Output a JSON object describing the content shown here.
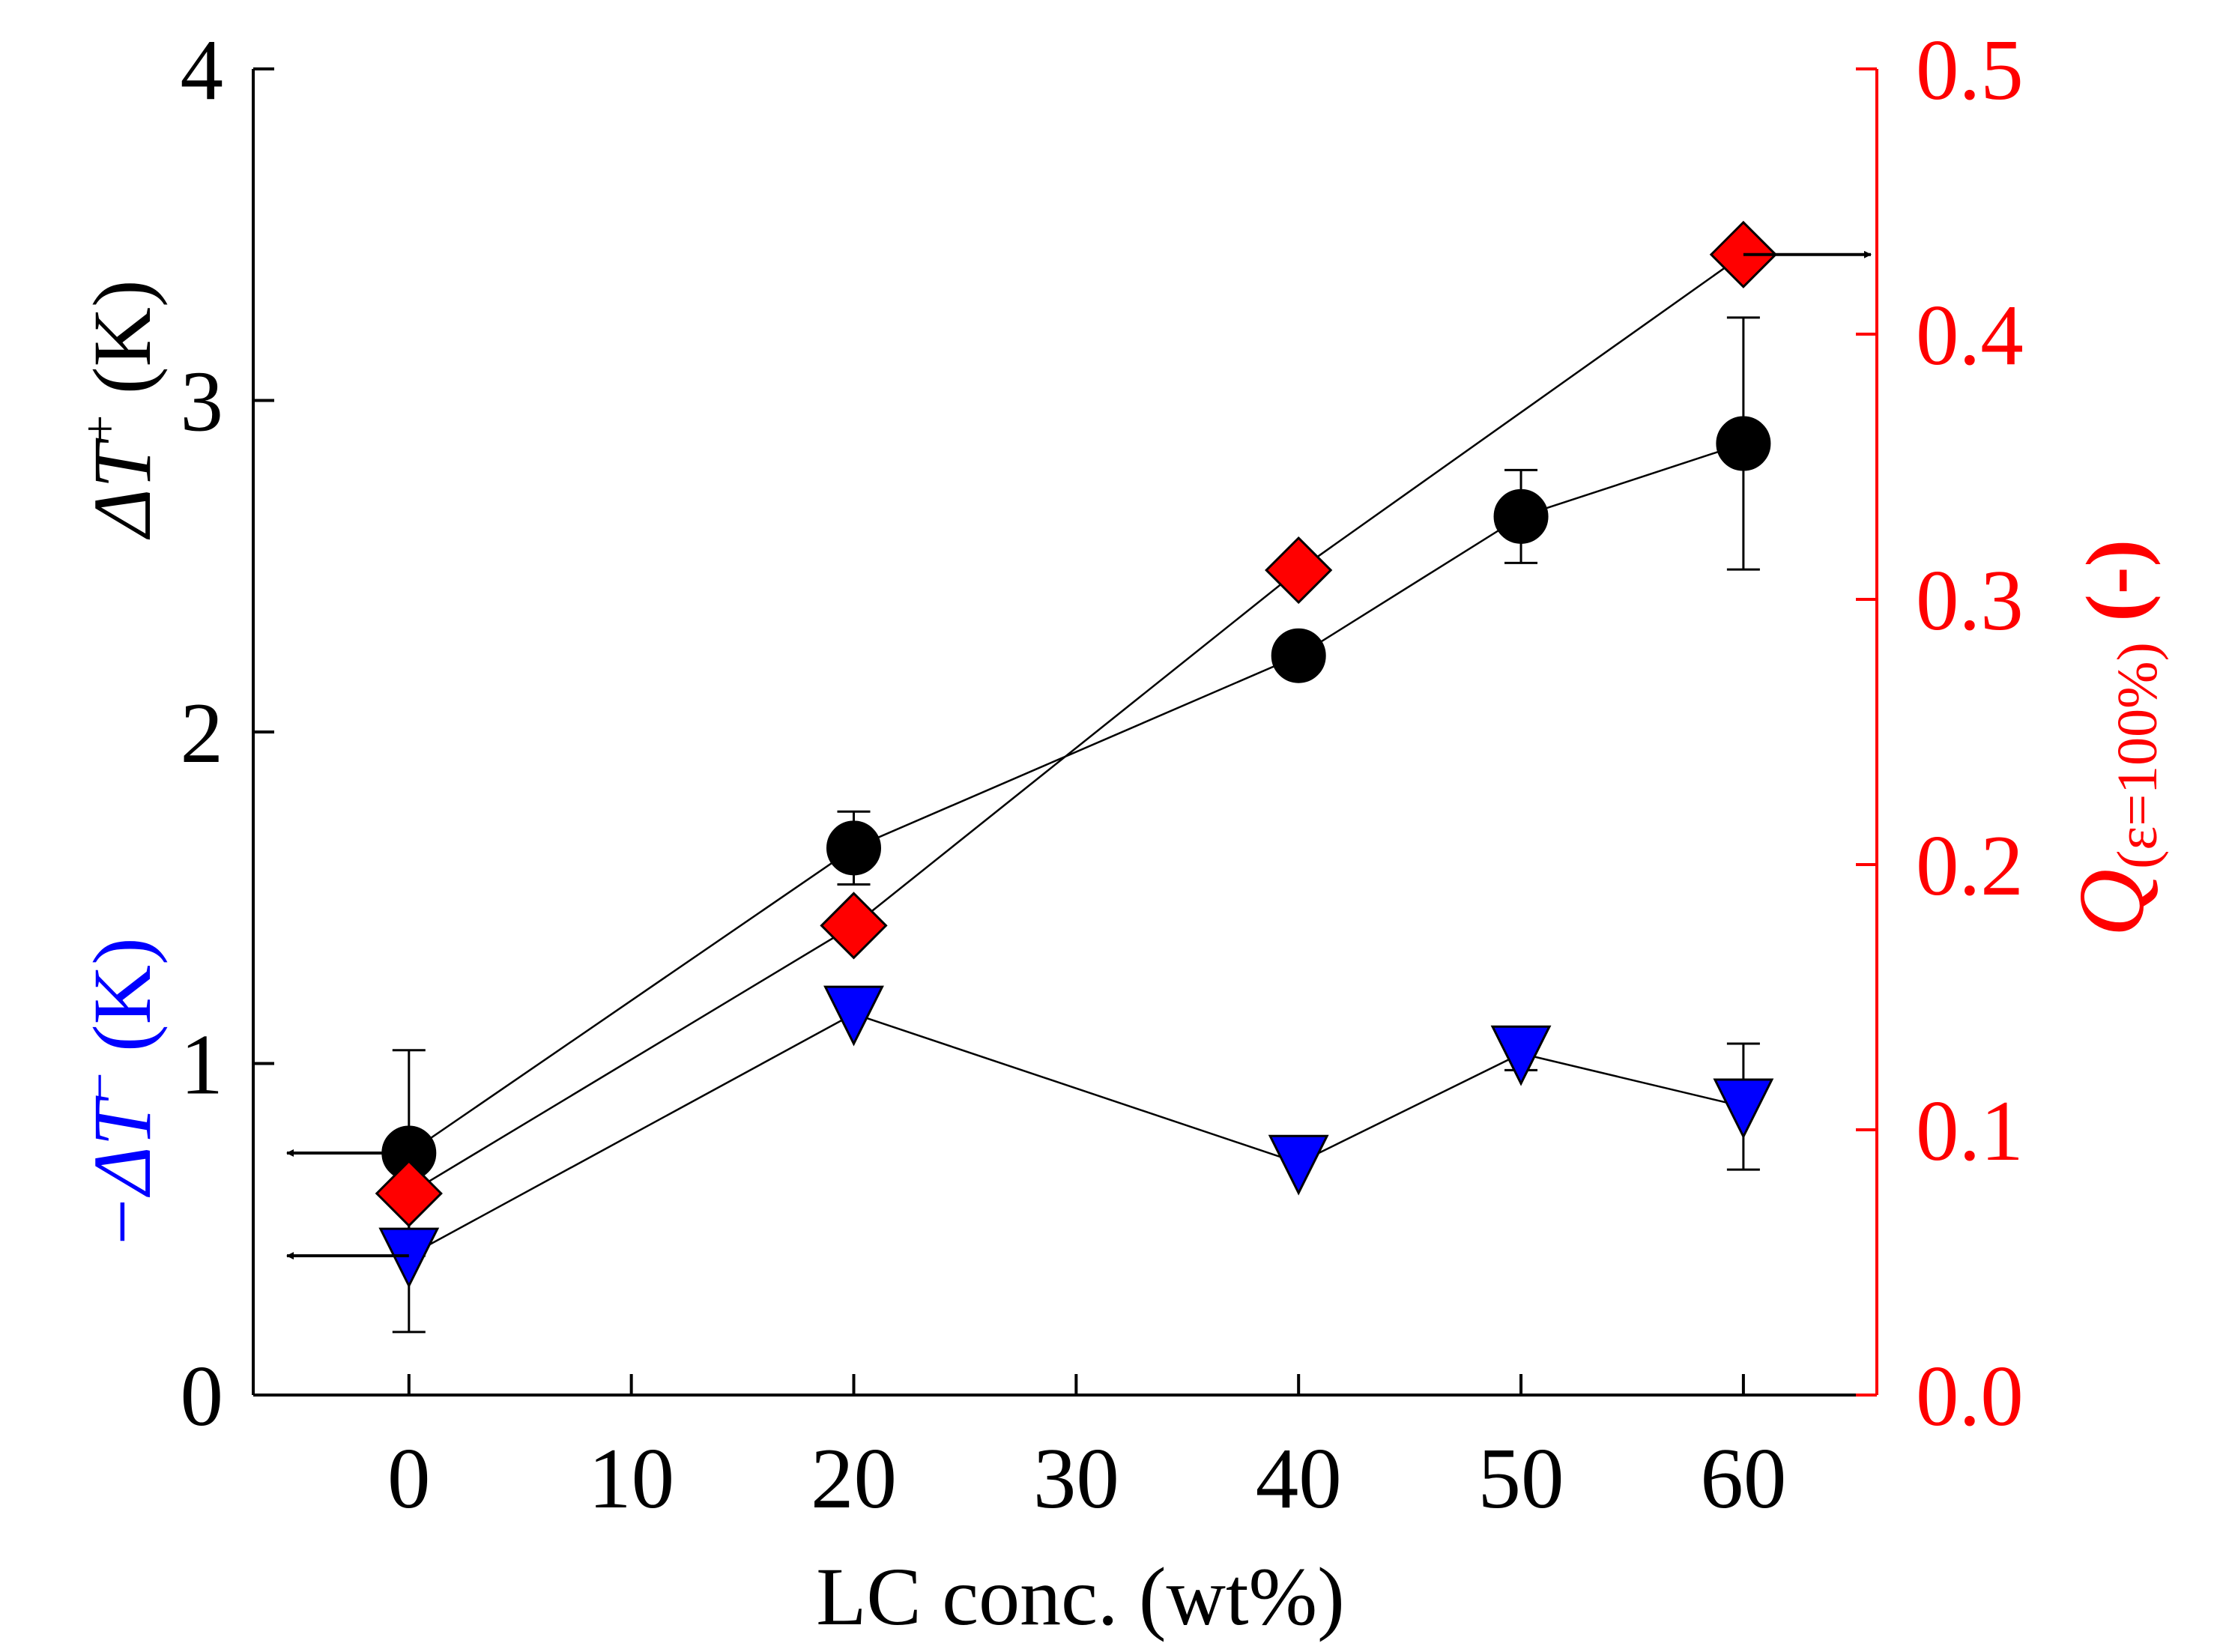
{
  "chart_data": {
    "type": "scatter",
    "x_axis": {
      "label": "LC conc. (wt%)",
      "range": [
        -7,
        66
      ],
      "ticks": [
        0,
        10,
        20,
        30,
        40,
        50,
        60
      ]
    },
    "y_axis_left": {
      "label_upper": "ΔT⁺ (K)",
      "label_upper_main": "ΔT",
      "label_upper_sup": "+",
      "label_upper_unit": " (K)",
      "label_lower": "−ΔT⁻ (K)",
      "label_lower_prefix": "−ΔT",
      "label_lower_sup": "−",
      "label_lower_unit": " (K)",
      "range": [
        0,
        4
      ],
      "ticks": [
        0,
        1,
        2,
        3,
        4
      ],
      "tick_labels": [
        "0",
        "1",
        "2",
        "3",
        "4"
      ]
    },
    "y_axis_right": {
      "label": "Q(ε=100%) (-)",
      "label_Q": "Q",
      "label_sub": "(ε=100%)",
      "label_unit": " (-)",
      "range": [
        0,
        0.5
      ],
      "ticks": [
        0.0,
        0.1,
        0.2,
        0.3,
        0.4,
        0.5
      ],
      "tick_labels": [
        "0.0",
        "0.1",
        "0.2",
        "0.3",
        "0.4",
        "0.5"
      ]
    },
    "series": [
      {
        "name": "ΔT+",
        "axis": "left",
        "marker": "circle",
        "color": "#000000",
        "x": [
          0,
          20,
          40,
          50,
          60
        ],
        "y": [
          0.73,
          1.65,
          2.23,
          2.65,
          2.87
        ],
        "err": [
          0.31,
          0.11,
          0.0,
          0.14,
          0.38
        ]
      },
      {
        "name": "-ΔT-",
        "axis": "left",
        "marker": "triangle-down",
        "color": "#0000ff",
        "x": [
          0,
          20,
          40,
          50,
          60
        ],
        "y": [
          0.42,
          1.15,
          0.7,
          1.03,
          0.87
        ],
        "err": [
          0.23,
          0.0,
          0.0,
          0.05,
          0.19
        ]
      },
      {
        "name": "Q(ε=100%)",
        "axis": "right",
        "marker": "diamond",
        "color": "#ff0000",
        "x": [
          0,
          20,
          40,
          60
        ],
        "y": [
          0.076,
          0.177,
          0.311,
          0.43
        ],
        "err": [
          0,
          0,
          0,
          0
        ]
      }
    ],
    "annotations": [
      {
        "text": "arrow pointing to left axis",
        "series": "ΔT+"
      },
      {
        "text": "arrow pointing to left axis",
        "series": "-ΔT-"
      },
      {
        "text": "arrow pointing to right axis",
        "series": "Q(ε=100%)"
      }
    ],
    "colors": {
      "left_axis": "#000000",
      "right_axis": "#ff0000",
      "lower_label": "#0000ff"
    }
  }
}
